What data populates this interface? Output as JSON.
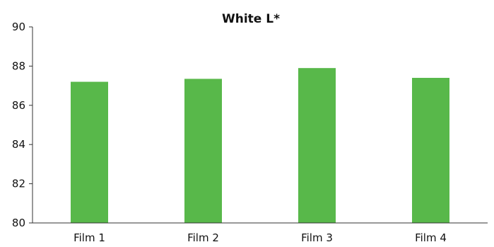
{
  "chart_data": {
    "type": "bar",
    "title": "White L*",
    "xlabel": "",
    "ylabel": "",
    "categories": [
      "Film 1",
      "Film 2",
      "Film 3",
      "Film 4"
    ],
    "values": [
      87.2,
      87.35,
      87.9,
      87.4
    ],
    "ylim": [
      80,
      90
    ],
    "yticks": [
      "80",
      "82",
      "84",
      "86",
      "88",
      "90"
    ],
    "grid": false,
    "legend": "none",
    "bar_color": "#58b84a",
    "axis_color": "#333333"
  }
}
